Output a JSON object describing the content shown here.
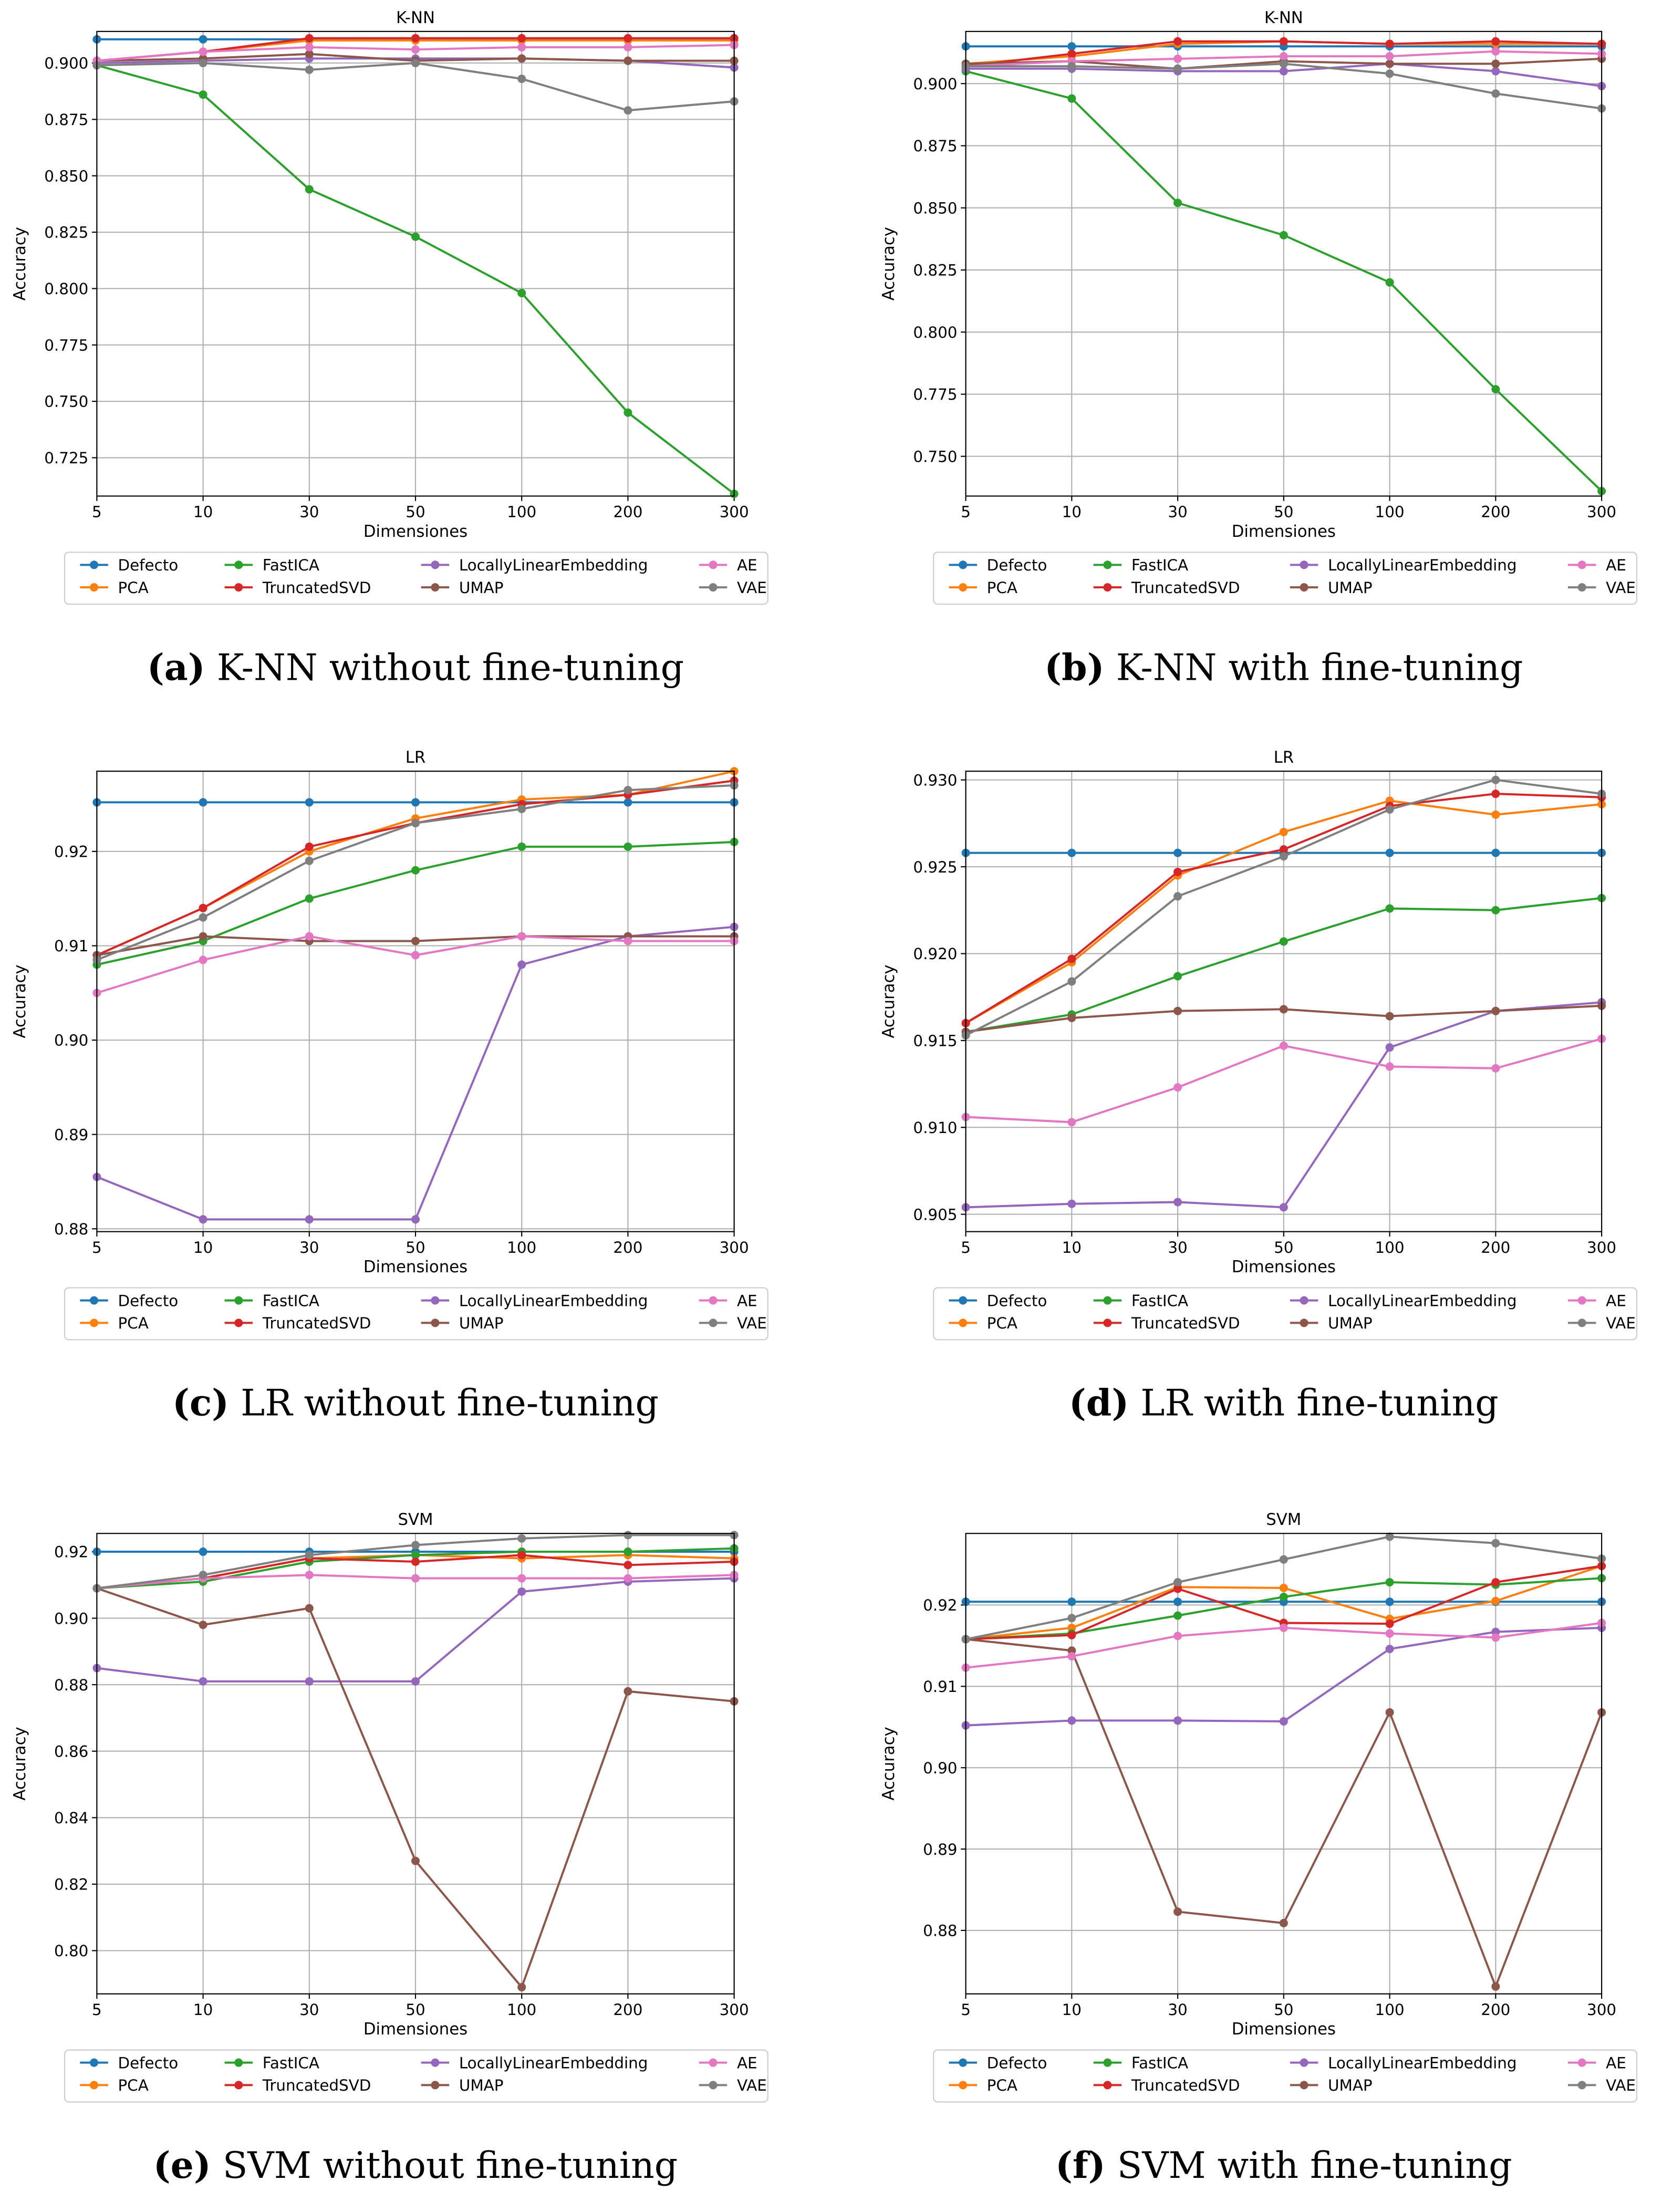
{
  "x_categories": [
    "5",
    "10",
    "30",
    "50",
    "100",
    "200",
    "300"
  ],
  "series_colors": {
    "Defecto": "#1f77b4",
    "PCA": "#ff7f0e",
    "FastICA": "#2ca02c",
    "TruncatedSVD": "#d62728",
    "LocallyLinearEmbedding": "#9467bd",
    "UMAP": "#8c564b",
    "AE": "#e377c2",
    "VAE": "#7f7f7f"
  },
  "legend_order": [
    "Defecto",
    "PCA",
    "FastICA",
    "TruncatedSVD",
    "LocallyLinearEmbedding",
    "UMAP",
    "AE",
    "VAE"
  ],
  "chart_data": [
    {
      "type": "line",
      "title": "K-NN",
      "xlabel": "Dimensiones",
      "ylabel": "Accuracy",
      "caption_letter": "(a)",
      "caption_text": " K-NN without fine-tuning",
      "ylim": [
        0.708,
        0.914
      ],
      "grid": true,
      "legend_placement": "below",
      "yticks": [
        0.725,
        0.75,
        0.775,
        0.8,
        0.825,
        0.85,
        0.875,
        0.9
      ],
      "ytick_labels": [
        "0.725",
        "0.750",
        "0.775",
        "0.800",
        "0.825",
        "0.850",
        "0.875",
        "0.900"
      ],
      "series": [
        {
          "name": "Defecto",
          "values": [
            0.9105,
            0.9105,
            0.9105,
            0.9105,
            0.9105,
            0.9105,
            0.9105
          ]
        },
        {
          "name": "PCA",
          "values": [
            0.901,
            0.905,
            0.91,
            0.91,
            0.91,
            0.91,
            0.91
          ]
        },
        {
          "name": "FastICA",
          "values": [
            0.899,
            0.886,
            0.844,
            0.823,
            0.798,
            0.745,
            0.709
          ]
        },
        {
          "name": "TruncatedSVD",
          "values": [
            0.901,
            0.905,
            0.911,
            0.911,
            0.911,
            0.911,
            0.911
          ]
        },
        {
          "name": "LocallyLinearEmbedding",
          "values": [
            0.9,
            0.901,
            0.902,
            0.902,
            0.902,
            0.901,
            0.898
          ]
        },
        {
          "name": "UMAP",
          "values": [
            0.901,
            0.902,
            0.904,
            0.901,
            0.902,
            0.901,
            0.901
          ]
        },
        {
          "name": "AE",
          "values": [
            0.901,
            0.905,
            0.907,
            0.906,
            0.907,
            0.907,
            0.908
          ]
        },
        {
          "name": "VAE",
          "values": [
            0.899,
            0.9,
            0.897,
            0.9,
            0.893,
            0.879,
            0.883
          ]
        }
      ]
    },
    {
      "type": "line",
      "title": "K-NN",
      "xlabel": "Dimensiones",
      "ylabel": "Accuracy",
      "caption_letter": "(b)",
      "caption_text": " K-NN with fine-tuning",
      "ylim": [
        0.734,
        0.921
      ],
      "grid": true,
      "legend_placement": "below",
      "yticks": [
        0.75,
        0.775,
        0.8,
        0.825,
        0.85,
        0.875,
        0.9
      ],
      "ytick_labels": [
        "0.750",
        "0.775",
        "0.800",
        "0.825",
        "0.850",
        "0.875",
        "0.900"
      ],
      "series": [
        {
          "name": "Defecto",
          "values": [
            0.915,
            0.915,
            0.915,
            0.915,
            0.915,
            0.915,
            0.915
          ]
        },
        {
          "name": "PCA",
          "values": [
            0.908,
            0.911,
            0.916,
            0.917,
            0.916,
            0.916,
            0.916
          ]
        },
        {
          "name": "FastICA",
          "values": [
            0.905,
            0.894,
            0.852,
            0.839,
            0.82,
            0.777,
            0.736
          ]
        },
        {
          "name": "TruncatedSVD",
          "values": [
            0.907,
            0.912,
            0.917,
            0.917,
            0.916,
            0.917,
            0.916
          ]
        },
        {
          "name": "LocallyLinearEmbedding",
          "values": [
            0.906,
            0.906,
            0.905,
            0.905,
            0.908,
            0.905,
            0.899
          ]
        },
        {
          "name": "UMAP",
          "values": [
            0.908,
            0.909,
            0.906,
            0.909,
            0.908,
            0.908,
            0.91
          ]
        },
        {
          "name": "AE",
          "values": [
            0.907,
            0.909,
            0.91,
            0.911,
            0.911,
            0.913,
            0.912
          ]
        },
        {
          "name": "VAE",
          "values": [
            0.907,
            0.907,
            0.906,
            0.908,
            0.904,
            0.896,
            0.89
          ]
        }
      ]
    },
    {
      "type": "line",
      "title": "LR",
      "xlabel": "Dimensiones",
      "ylabel": "Accuracy",
      "caption_letter": "(c)",
      "caption_text": " LR without fine-tuning",
      "ylim": [
        0.8797,
        0.9285
      ],
      "grid": true,
      "legend_placement": "below",
      "yticks": [
        0.88,
        0.89,
        0.9,
        0.91,
        0.92
      ],
      "ytick_labels": [
        "0.88",
        "0.89",
        "0.90",
        "0.91",
        "0.92"
      ],
      "series": [
        {
          "name": "Defecto",
          "values": [
            0.9252,
            0.9252,
            0.9252,
            0.9252,
            0.9252,
            0.9252,
            0.9252
          ]
        },
        {
          "name": "PCA",
          "values": [
            0.909,
            0.914,
            0.92,
            0.9235,
            0.9255,
            0.926,
            0.9285
          ]
        },
        {
          "name": "FastICA",
          "values": [
            0.908,
            0.9105,
            0.915,
            0.918,
            0.9205,
            0.9205,
            0.921
          ]
        },
        {
          "name": "TruncatedSVD",
          "values": [
            0.909,
            0.914,
            0.9205,
            0.923,
            0.925,
            0.926,
            0.9275
          ]
        },
        {
          "name": "LocallyLinearEmbedding",
          "values": [
            0.8855,
            0.881,
            0.881,
            0.881,
            0.908,
            0.911,
            0.912
          ]
        },
        {
          "name": "UMAP",
          "values": [
            0.909,
            0.911,
            0.9105,
            0.9105,
            0.911,
            0.911,
            0.911
          ]
        },
        {
          "name": "AE",
          "values": [
            0.905,
            0.9085,
            0.911,
            0.909,
            0.911,
            0.9105,
            0.9105
          ]
        },
        {
          "name": "VAE",
          "values": [
            0.9085,
            0.913,
            0.919,
            0.923,
            0.9245,
            0.9265,
            0.927
          ]
        }
      ]
    },
    {
      "type": "line",
      "title": "LR",
      "xlabel": "Dimensiones",
      "ylabel": "Accuracy",
      "caption_letter": "(d)",
      "caption_text": " LR with fine-tuning",
      "ylim": [
        0.904,
        0.9305
      ],
      "grid": true,
      "legend_placement": "below",
      "yticks": [
        0.905,
        0.91,
        0.915,
        0.92,
        0.925,
        0.93
      ],
      "ytick_labels": [
        "0.905",
        "0.910",
        "0.915",
        "0.920",
        "0.925",
        "0.930"
      ],
      "series": [
        {
          "name": "Defecto",
          "values": [
            0.9258,
            0.9258,
            0.9258,
            0.9258,
            0.9258,
            0.9258,
            0.9258
          ]
        },
        {
          "name": "PCA",
          "values": [
            0.916,
            0.9195,
            0.9245,
            0.927,
            0.9288,
            0.928,
            0.9286
          ]
        },
        {
          "name": "FastICA",
          "values": [
            0.9155,
            0.9165,
            0.9187,
            0.9207,
            0.9226,
            0.9225,
            0.9232
          ]
        },
        {
          "name": "TruncatedSVD",
          "values": [
            0.916,
            0.9197,
            0.9247,
            0.926,
            0.9285,
            0.9292,
            0.929
          ]
        },
        {
          "name": "LocallyLinearEmbedding",
          "values": [
            0.9054,
            0.9056,
            0.9057,
            0.9054,
            0.9146,
            0.9167,
            0.9172
          ]
        },
        {
          "name": "UMAP",
          "values": [
            0.9155,
            0.9163,
            0.9167,
            0.9168,
            0.9164,
            0.9167,
            0.917
          ]
        },
        {
          "name": "AE",
          "values": [
            0.9106,
            0.9103,
            0.9123,
            0.9147,
            0.9135,
            0.9134,
            0.9151
          ]
        },
        {
          "name": "VAE",
          "values": [
            0.9153,
            0.9184,
            0.9233,
            0.9256,
            0.9283,
            0.93,
            0.9292
          ]
        }
      ]
    },
    {
      "type": "line",
      "title": "SVM",
      "xlabel": "Dimensiones",
      "ylabel": "Accuracy",
      "caption_letter": "(e)",
      "caption_text": " SVM without fine-tuning",
      "ylim": [
        0.787,
        0.9255
      ],
      "grid": true,
      "legend_placement": "below",
      "yticks": [
        0.8,
        0.82,
        0.84,
        0.86,
        0.88,
        0.9,
        0.92
      ],
      "ytick_labels": [
        "0.80",
        "0.82",
        "0.84",
        "0.86",
        "0.88",
        "0.90",
        "0.92"
      ],
      "series": [
        {
          "name": "Defecto",
          "values": [
            0.92,
            0.92,
            0.92,
            0.92,
            0.92,
            0.92,
            0.92
          ]
        },
        {
          "name": "PCA",
          "values": [
            0.909,
            0.912,
            0.918,
            0.919,
            0.918,
            0.919,
            0.918
          ]
        },
        {
          "name": "FastICA",
          "values": [
            0.909,
            0.911,
            0.917,
            0.919,
            0.92,
            0.92,
            0.921
          ]
        },
        {
          "name": "TruncatedSVD",
          "values": [
            0.909,
            0.912,
            0.918,
            0.917,
            0.919,
            0.916,
            0.917
          ]
        },
        {
          "name": "LocallyLinearEmbedding",
          "values": [
            0.885,
            0.881,
            0.881,
            0.881,
            0.908,
            0.911,
            0.912
          ]
        },
        {
          "name": "UMAP",
          "values": [
            0.909,
            0.898,
            0.903,
            0.827,
            0.789,
            0.878,
            0.875
          ]
        },
        {
          "name": "AE",
          "values": [
            0.909,
            0.912,
            0.913,
            0.912,
            0.912,
            0.912,
            0.913
          ]
        },
        {
          "name": "VAE",
          "values": [
            0.909,
            0.913,
            0.919,
            0.922,
            0.924,
            0.925,
            0.925
          ]
        }
      ]
    },
    {
      "type": "line",
      "title": "SVM",
      "xlabel": "Dimensiones",
      "ylabel": "Accuracy",
      "caption_letter": "(f)",
      "caption_text": " SVM with fine-tuning",
      "ylim": [
        0.8722,
        0.9288
      ],
      "grid": true,
      "legend_placement": "below",
      "yticks": [
        0.88,
        0.89,
        0.9,
        0.91,
        0.92
      ],
      "ytick_labels": [
        "0.88",
        "0.89",
        "0.90",
        "0.91",
        "0.92"
      ],
      "series": [
        {
          "name": "Defecto",
          "values": [
            0.9204,
            0.9204,
            0.9204,
            0.9204,
            0.9204,
            0.9204,
            0.9204
          ]
        },
        {
          "name": "PCA",
          "values": [
            0.9158,
            0.9172,
            0.9222,
            0.9221,
            0.9183,
            0.9205,
            0.9248
          ]
        },
        {
          "name": "FastICA",
          "values": [
            0.9158,
            0.9165,
            0.9187,
            0.921,
            0.9228,
            0.9225,
            0.9233
          ]
        },
        {
          "name": "TruncatedSVD",
          "values": [
            0.9158,
            0.9163,
            0.922,
            0.9178,
            0.9177,
            0.9228,
            0.9248
          ]
        },
        {
          "name": "LocallyLinearEmbedding",
          "values": [
            0.9052,
            0.9058,
            0.9058,
            0.9057,
            0.9146,
            0.9167,
            0.9172
          ]
        },
        {
          "name": "UMAP",
          "values": [
            0.9158,
            0.9144,
            0.8823,
            0.8809,
            0.9068,
            0.8731,
            0.9068
          ]
        },
        {
          "name": "AE",
          "values": [
            0.9123,
            0.9137,
            0.9162,
            0.9172,
            0.9165,
            0.916,
            0.9178
          ]
        },
        {
          "name": "VAE",
          "values": [
            0.9158,
            0.9184,
            0.9228,
            0.9256,
            0.9284,
            0.9276,
            0.9257
          ]
        }
      ]
    }
  ]
}
